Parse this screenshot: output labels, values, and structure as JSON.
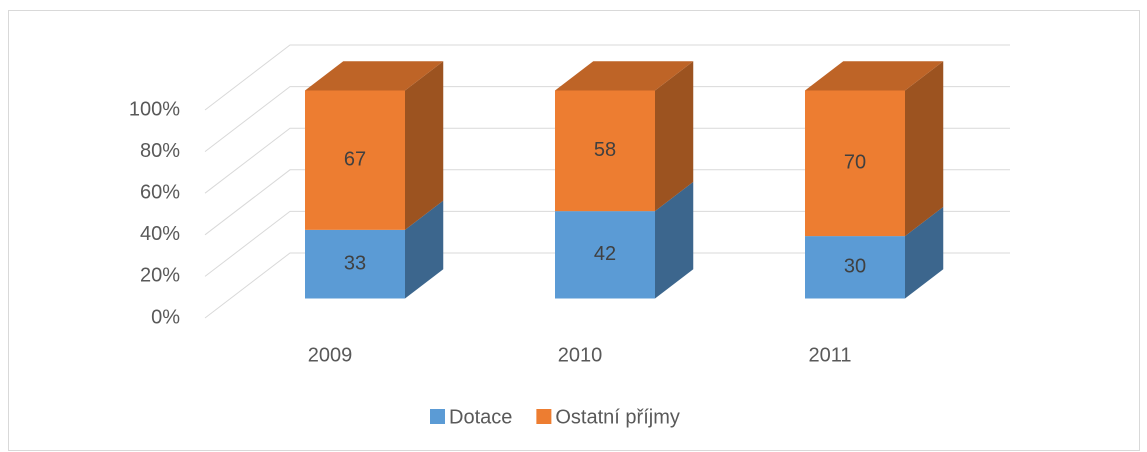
{
  "chart_data": {
    "type": "bar3d_stacked",
    "categories": [
      "2009",
      "2010",
      "2011"
    ],
    "series": [
      {
        "name": "Dotace",
        "color": "#5b9bd5",
        "values": [
          33,
          42,
          30
        ]
      },
      {
        "name": "Ostatní příjmy",
        "color": "#ed7d31",
        "values": [
          67,
          58,
          70
        ]
      }
    ],
    "ylim": [
      0,
      100
    ],
    "yticks": [
      {
        "value": 0,
        "label": "0%"
      },
      {
        "value": 20,
        "label": "20%"
      },
      {
        "value": 40,
        "label": "40%"
      },
      {
        "value": 60,
        "label": "60%"
      },
      {
        "value": 80,
        "label": "80%"
      },
      {
        "value": 100,
        "label": "100%"
      }
    ],
    "grid": true,
    "legend": "bottom"
  }
}
